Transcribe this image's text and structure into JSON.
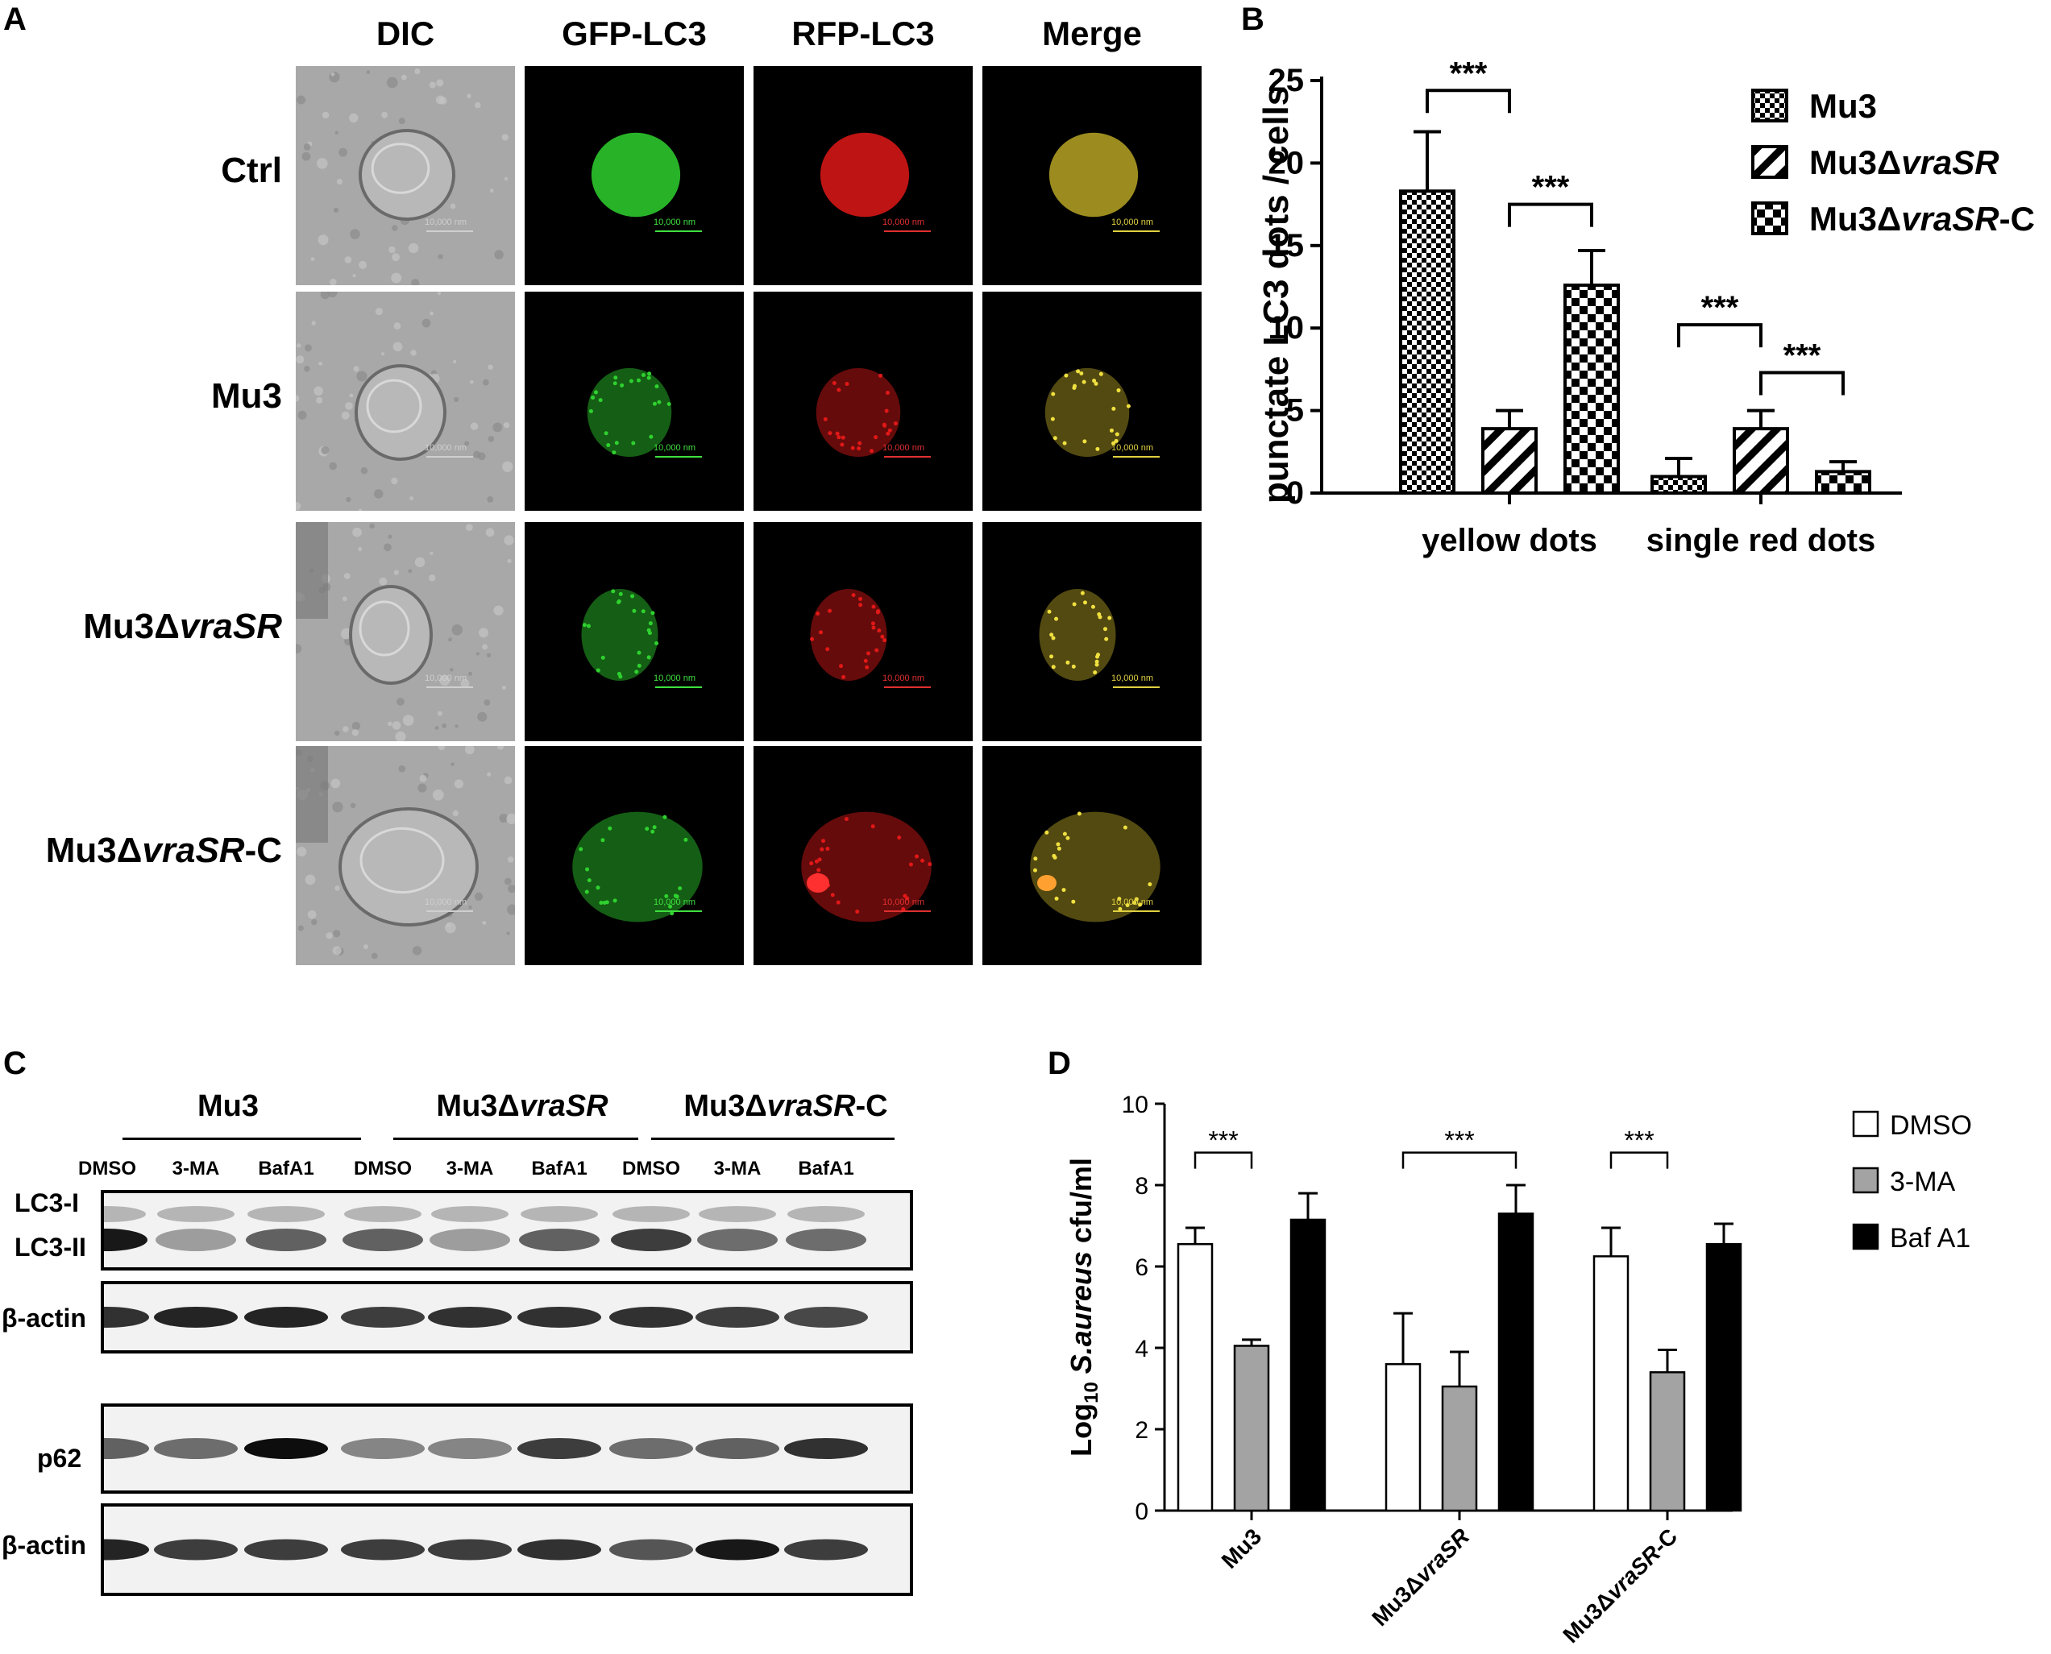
{
  "panels": {
    "a": "A",
    "b": "B",
    "c": "C",
    "d": "D"
  },
  "microscopy": {
    "columns": [
      "DIC",
      "GFP-LC3",
      "RFP-LC3",
      "Merge"
    ],
    "rows": [
      {
        "prefix": "Ctrl",
        "italic": "",
        "suffix": ""
      },
      {
        "prefix": "Mu3",
        "italic": "",
        "suffix": ""
      },
      {
        "prefix": "Mu3Δ",
        "italic": "vraSR",
        "suffix": ""
      },
      {
        "prefix": "Mu3Δ",
        "italic": "vraSR",
        "suffix": "-C"
      }
    ],
    "scale_bar_label": "10,000 nm",
    "channel_colors": {
      "dic": "#8a8a8a",
      "gfp": "#2fd12f",
      "rfp": "#e01818",
      "merge": "#b7a525"
    }
  },
  "chart_b": {
    "type": "bar",
    "ylabel": "punctate LC3 dots / cells",
    "ylim": [
      0,
      25
    ],
    "yticks": [
      "0",
      "5",
      "10",
      "15",
      "20",
      "25"
    ],
    "categories": [
      "yellow dots",
      "single red dots"
    ],
    "series": [
      {
        "name_prefix": "Mu3",
        "name_italic": "",
        "name_suffix": "",
        "pattern": "checker-small",
        "values": [
          18.3,
          1.0
        ],
        "errors": [
          3.6,
          1.1
        ]
      },
      {
        "name_prefix": "Mu3Δ",
        "name_italic": "vraSR",
        "name_suffix": "",
        "pattern": "diagonal",
        "values": [
          3.9,
          3.9
        ],
        "errors": [
          1.1,
          1.1
        ]
      },
      {
        "name_prefix": "Mu3Δ",
        "name_italic": "vraSR",
        "name_suffix": "-C",
        "pattern": "checker-large",
        "values": [
          12.6,
          1.3
        ],
        "errors": [
          2.1,
          0.6
        ]
      }
    ],
    "significance": [
      {
        "label": "***",
        "group": 0,
        "from": 0,
        "to": 1,
        "level": 24.4
      },
      {
        "label": "***",
        "group": 0,
        "from": 1,
        "to": 2,
        "level": 17.5
      },
      {
        "label": "***",
        "group": 1,
        "from": 0,
        "to": 1,
        "level": 10.2
      },
      {
        "label": "***",
        "group": 1,
        "from": 1,
        "to": 2,
        "level": 7.3
      }
    ]
  },
  "western": {
    "groups": [
      {
        "prefix": "Mu3",
        "italic": "",
        "suffix": ""
      },
      {
        "prefix": "Mu3Δ",
        "italic": "vraSR",
        "suffix": ""
      },
      {
        "prefix": "Mu3Δ",
        "italic": "vraSR",
        "suffix": "-C"
      }
    ],
    "lanes": [
      "DMSO",
      "3-MA",
      "BafA1",
      "DMSO",
      "3-MA",
      "BafA1",
      "DMSO",
      "3-MA",
      "BafA1"
    ],
    "row_labels": {
      "lc3_i": "LC3-I",
      "lc3_ii": "LC3-II",
      "actin1": "β-actin",
      "p62": "p62",
      "actin2": "β-actin"
    },
    "band_intensity": {
      "lc3_ii": [
        0.9,
        0.35,
        0.6,
        0.6,
        0.35,
        0.6,
        0.75,
        0.55,
        0.55
      ],
      "actin1": [
        0.8,
        0.85,
        0.85,
        0.75,
        0.8,
        0.8,
        0.8,
        0.75,
        0.7
      ],
      "p62": [
        0.6,
        0.55,
        0.95,
        0.45,
        0.45,
        0.75,
        0.55,
        0.6,
        0.8
      ],
      "actin2": [
        0.85,
        0.75,
        0.75,
        0.75,
        0.75,
        0.8,
        0.65,
        0.9,
        0.75
      ]
    }
  },
  "chart_d": {
    "type": "bar",
    "ylabel_prefix": "Log",
    "ylabel_sub": "10",
    "ylabel_italic": "S.aureus",
    "ylabel_suffix": "cfu/ml",
    "ylim": [
      0,
      10
    ],
    "yticks": [
      "0",
      "2",
      "4",
      "6",
      "8",
      "10"
    ],
    "categories": [
      {
        "prefix": "Mu3",
        "italic": "",
        "suffix": ""
      },
      {
        "prefix": "Mu3Δ",
        "italic": "vraSR",
        "suffix": ""
      },
      {
        "prefix": "Mu3Δ",
        "italic": "vraSR",
        "suffix": "-C"
      }
    ],
    "series": [
      {
        "name": "DMSO",
        "color": "#ffffff",
        "values": [
          6.55,
          3.6,
          6.25
        ],
        "errors": [
          0.4,
          1.25,
          0.7
        ]
      },
      {
        "name": "3-MA",
        "color": "#a3a3a3",
        "values": [
          4.05,
          3.05,
          3.4
        ],
        "errors": [
          0.15,
          0.85,
          0.55
        ]
      },
      {
        "name": "Baf A1",
        "color": "#000000",
        "values": [
          7.15,
          7.3,
          6.55
        ],
        "errors": [
          0.65,
          0.7,
          0.5
        ]
      }
    ],
    "significance": [
      {
        "label": "***",
        "group": 0,
        "from": 0,
        "to": 1,
        "level": 8.8
      },
      {
        "label": "***",
        "group": 1,
        "from": 0,
        "to": 2,
        "level": 8.8
      },
      {
        "label": "***",
        "group": 2,
        "from": 0,
        "to": 1,
        "level": 8.8
      }
    ]
  }
}
